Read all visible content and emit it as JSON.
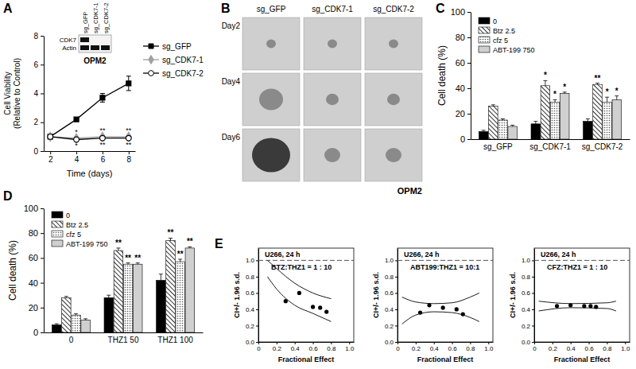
{
  "chart_data": [
    {
      "panel": "A",
      "type": "line",
      "x": [
        2,
        4,
        6,
        8
      ],
      "xlim": [
        1.5,
        8.5
      ],
      "xticks": [
        2,
        4,
        6,
        8
      ],
      "ylim": [
        0,
        8
      ],
      "yticks": [
        0,
        2,
        4,
        6,
        8
      ],
      "x_label": "Time (days)",
      "y_label": [
        "Cell Viability",
        "(Relative to Control)"
      ],
      "legend": "right",
      "series": [
        {
          "name": "sg_GFP",
          "color": "#000000",
          "marker": "square",
          "values": [
            1,
            2.2,
            3.7,
            4.7
          ],
          "errors": [
            0.05,
            0.1,
            0.3,
            0.5
          ]
        },
        {
          "name": "sg_CDK7-1",
          "color": "#a0a0a0",
          "marker": "diamond",
          "values": [
            1,
            0.9,
            1.0,
            1.0
          ],
          "errors": [
            0.05,
            0.1,
            0.1,
            0.1
          ],
          "significance": [
            null,
            "*",
            "**",
            "**"
          ]
        },
        {
          "name": "sg_CDK7-2",
          "color": "#000000",
          "marker": "open_circle",
          "values": [
            1,
            0.8,
            0.9,
            0.9
          ],
          "errors": [
            0.05,
            0.1,
            0.1,
            0.1
          ],
          "significance": [
            null,
            "*",
            "**",
            "**"
          ]
        }
      ],
      "blot": {
        "lanes": [
          "sg_GFP",
          "sg_CDK7-1",
          "sg_CDK7-2"
        ],
        "rows": [
          "CDK7",
          "Actin"
        ],
        "bands": [
          [
            1,
            0,
            0
          ],
          [
            1,
            1,
            1
          ]
        ],
        "cell_line": "OPM2"
      }
    },
    {
      "panel": "B",
      "type": "image_grid",
      "columns": [
        "sg_GFP",
        "sg_CDK7-1",
        "sg_CDK7-2"
      ],
      "rows": [
        "Day2",
        "Day4",
        "Day6"
      ],
      "cell_line": "OPM2"
    },
    {
      "panel": "C",
      "type": "bar",
      "categories": [
        "sg_GFP",
        "sg_CDK7-1",
        "sg_CDK7-2"
      ],
      "ylim": [
        0,
        100
      ],
      "yticks": [
        0,
        20,
        40,
        60,
        80,
        100
      ],
      "y_label": "Cell death (%)",
      "legend": "upper left",
      "series": [
        {
          "name": "0",
          "color": "#000000",
          "values": [
            6,
            12,
            14
          ],
          "errors": [
            1,
            2,
            2
          ]
        },
        {
          "name": "Btz 2.5",
          "color": "#000000",
          "values": [
            26,
            42,
            43
          ],
          "errors": [
            1,
            4,
            1
          ],
          "significance": [
            null,
            "*",
            "**"
          ]
        },
        {
          "name": "cfz 5",
          "color": "#555555",
          "values": [
            15,
            29,
            29
          ],
          "errors": [
            1,
            2,
            4
          ],
          "significance": [
            null,
            "*",
            "*"
          ]
        },
        {
          "name": "ABT-199 750",
          "color": "#d0d0d0",
          "values": [
            10,
            36,
            31
          ],
          "errors": [
            1,
            1,
            3
          ],
          "significance": [
            null,
            "*",
            "*"
          ]
        }
      ]
    },
    {
      "panel": "D",
      "type": "bar",
      "categories": [
        "0",
        "THZ1 50",
        "THZ1 100"
      ],
      "ylim": [
        0,
        100
      ],
      "yticks": [
        0,
        20,
        40,
        60,
        80,
        100
      ],
      "y_label": "Cell death (%)",
      "legend": "upper left",
      "series": [
        {
          "name": "0",
          "color": "#000000",
          "values": [
            6,
            28,
            42
          ],
          "errors": [
            1,
            2,
            5
          ]
        },
        {
          "name": "Btz 2.5",
          "color": "#000000",
          "values": [
            28,
            66,
            74
          ],
          "errors": [
            1,
            2,
            2
          ],
          "significance": [
            null,
            "**",
            "**"
          ]
        },
        {
          "name": "cfz 5",
          "color": "#555555",
          "values": [
            14,
            55,
            57
          ],
          "errors": [
            1,
            1,
            2
          ],
          "significance": [
            null,
            "**",
            "**"
          ]
        },
        {
          "name": "ABT-199 750",
          "color": "#d0d0d0",
          "values": [
            10,
            55,
            68
          ],
          "errors": [
            1,
            1,
            1
          ],
          "significance": [
            null,
            "**",
            "**"
          ]
        }
      ]
    },
    {
      "panel": "E",
      "type": "scatter",
      "title": "U266, 24 h",
      "subtitle": "BTZ:THZ1 = 1 : 10",
      "xlim": [
        0,
        1.05
      ],
      "xticks": [
        0,
        0.2,
        0.4,
        0.6,
        0.8,
        {
          "value": 1,
          "label": "1.0"
        }
      ],
      "ylim": [
        0,
        1.15
      ],
      "yticks": [
        {
          "value": 0,
          "label": "0.0"
        },
        0.2,
        0.4,
        0.6,
        0.8,
        {
          "value": 1,
          "label": "1.0"
        }
      ],
      "x_label": "Fractional Effect",
      "y_label": "CI+/- 1.96 s.d.",
      "hline": 1,
      "series": [
        {
          "type": "scatter",
          "color": "#000000",
          "x": [
            0.3,
            0.45,
            0.6,
            0.68,
            0.75
          ],
          "values": [
            0.5,
            0.6,
            0.43,
            0.42,
            0.37
          ]
        },
        {
          "type": "line",
          "color": "#000000",
          "x": [
            0.1,
            0.2,
            0.4,
            0.6,
            0.8
          ],
          "values": [
            1.0,
            0.9,
            0.72,
            0.6,
            0.53
          ]
        },
        {
          "type": "line",
          "color": "#000000",
          "x": [
            0.1,
            0.2,
            0.4,
            0.6,
            0.8
          ],
          "values": [
            0.8,
            0.65,
            0.45,
            0.35,
            0.25
          ]
        }
      ]
    },
    {
      "type": "scatter",
      "title": "U266, 24 h",
      "subtitle": "ABT199:THZ1 = 10:1",
      "xlim": [
        0,
        1.05
      ],
      "xticks": [
        0,
        0.2,
        0.4,
        0.6,
        0.8,
        {
          "value": 1,
          "label": "1.0"
        }
      ],
      "ylim": [
        0,
        1.15
      ],
      "yticks": [
        {
          "value": 0,
          "label": "0.0"
        },
        0.2,
        0.4,
        0.6,
        0.8,
        {
          "value": 1,
          "label": "1.0"
        }
      ],
      "x_label": "Fractional Effect",
      "y_label": "CI+/- 1.96 s.d.",
      "hline": 1,
      "series": [
        {
          "type": "scatter",
          "color": "#000000",
          "x": [
            0.25,
            0.35,
            0.5,
            0.65,
            0.72
          ],
          "values": [
            0.36,
            0.45,
            0.42,
            0.4,
            0.34
          ]
        },
        {
          "type": "line",
          "color": "#000000",
          "x": [
            0.05,
            0.2,
            0.4,
            0.6,
            0.8,
            0.9
          ],
          "values": [
            0.55,
            0.49,
            0.47,
            0.48,
            0.55,
            0.6
          ]
        },
        {
          "type": "line",
          "color": "#000000",
          "x": [
            0.05,
            0.2,
            0.4,
            0.6,
            0.8,
            0.9
          ],
          "values": [
            0.22,
            0.33,
            0.37,
            0.36,
            0.3,
            0.25
          ]
        }
      ]
    },
    {
      "type": "scatter",
      "title": "U266, 24 h",
      "subtitle": "CFZ:THZ1 = 1 : 10",
      "xlim": [
        0,
        1.05
      ],
      "xticks": [
        0,
        0.2,
        0.4,
        0.6,
        0.8,
        {
          "value": 1,
          "label": "1.0"
        }
      ],
      "ylim": [
        0,
        1.15
      ],
      "yticks": [
        {
          "value": 0,
          "label": "0.0"
        },
        0.2,
        0.4,
        0.6,
        0.8,
        {
          "value": 1,
          "label": "1.0"
        }
      ],
      "x_label": "Fractional Effect",
      "y_label": "CI+/- 1.96 s.d.",
      "hline": 1,
      "series": [
        {
          "type": "scatter",
          "color": "#000000",
          "x": [
            0.25,
            0.4,
            0.55,
            0.62,
            0.68
          ],
          "values": [
            0.44,
            0.45,
            0.44,
            0.44,
            0.43
          ]
        },
        {
          "type": "line",
          "color": "#000000",
          "x": [
            0.05,
            0.4,
            0.8,
            0.9
          ],
          "values": [
            0.5,
            0.47,
            0.48,
            0.5
          ]
        },
        {
          "type": "line",
          "color": "#000000",
          "x": [
            0.05,
            0.4,
            0.8,
            0.9
          ],
          "values": [
            0.38,
            0.42,
            0.41,
            0.38
          ]
        }
      ]
    }
  ]
}
